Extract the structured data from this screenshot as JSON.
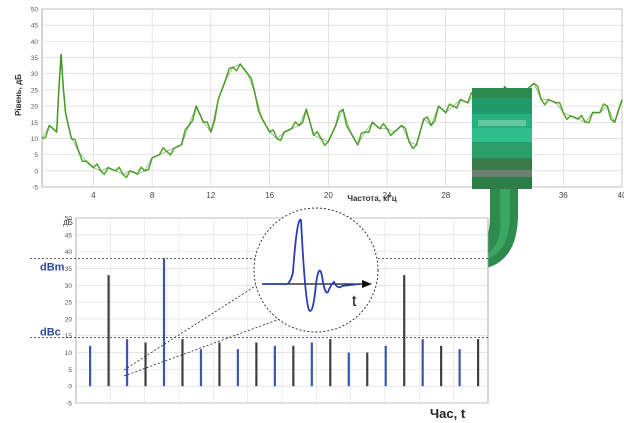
{
  "top_chart": {
    "ylabel": "Рівень, дБ",
    "xlabel": "Частота, кГц",
    "y_ticks": [
      "50",
      "45",
      "40",
      "35",
      "30",
      "25",
      "20",
      "15",
      "10",
      "5",
      "0",
      "-5"
    ],
    "x_ticks": [
      "4",
      "8",
      "12",
      "16",
      "20",
      "24",
      "28",
      "32",
      "36",
      "40"
    ],
    "colors": {
      "line": "#5aa832",
      "line_dark": "#2f7a22",
      "grid": "#c8c8c8"
    }
  },
  "bottom_chart": {
    "ylabel": "дБ",
    "y_ticks": [
      "50",
      "45",
      "40",
      "35",
      "30",
      "25",
      "20",
      "15",
      "10",
      "5",
      "0",
      "-5"
    ],
    "dbm_label": "dBm",
    "dbc_label": "dBc",
    "xlabel": "Час, t",
    "colors": {
      "blue": "#3a56b0",
      "dark": "#404040",
      "label": "#2a4a9a"
    }
  },
  "inset": {
    "t_label": "t"
  },
  "chart_data": [
    {
      "type": "line",
      "xlabel": "Частота, кГц",
      "ylabel": "Рівень, дБ",
      "xlim": [
        0.5,
        40
      ],
      "ylim": [
        -5,
        50
      ],
      "grid": true,
      "series": [
        {
          "x": [
            0.5,
            1,
            1.5,
            1.8,
            2.1,
            2.5,
            3,
            3.5,
            4,
            4.5,
            5,
            5.5,
            6,
            6.5,
            7,
            7.5,
            8,
            8.5,
            9,
            9.5,
            10,
            10.5,
            11,
            11.5,
            12,
            12.5,
            13,
            13.5,
            14,
            14.5,
            15,
            15.5,
            16,
            16.5,
            17,
            17.5,
            18,
            18.5,
            19,
            19.5,
            20,
            20.5,
            21,
            21.5,
            22,
            22.5,
            23,
            23.5,
            24,
            24.5,
            25,
            25.5,
            26,
            26.5,
            27,
            27.5,
            28,
            28.5,
            29,
            29.5,
            30,
            30.5,
            31,
            31.5,
            32,
            32.5,
            33,
            33.5,
            34,
            34.5,
            35,
            35.5,
            36,
            36.5,
            37,
            37.5,
            38,
            38.5,
            39,
            39.5,
            40
          ],
          "y": [
            10,
            14,
            12,
            36,
            18,
            10,
            6,
            3,
            1,
            0,
            1,
            0,
            -1,
            0,
            -1,
            0,
            4,
            5,
            6,
            7,
            8,
            14,
            20,
            15,
            12,
            22,
            28,
            32,
            33,
            30,
            24,
            16,
            12,
            10,
            12,
            13,
            14,
            19,
            11,
            10,
            9,
            14,
            19,
            12,
            8,
            12,
            15,
            13,
            13,
            12,
            14,
            9,
            8,
            16,
            14,
            20,
            18,
            20,
            22,
            21,
            24,
            21,
            19,
            18,
            26,
            24,
            22,
            25,
            27,
            22,
            22,
            21,
            18,
            17,
            16,
            15,
            18,
            18,
            20,
            15,
            22
          ]
        }
      ]
    },
    {
      "type": "bar",
      "ylabel": "дБ",
      "xlabel": "Час, t",
      "ylim": [
        -5,
        50
      ],
      "reference_lines": {
        "dBm": 38,
        "dBc": 14.5
      },
      "series": [
        {
          "name": "",
          "values": [
            12,
            33,
            14,
            13,
            38,
            14,
            11,
            13,
            11,
            13,
            12,
            12,
            13,
            14,
            10,
            10,
            12,
            33,
            14,
            12,
            11,
            14
          ]
        }
      ]
    }
  ]
}
